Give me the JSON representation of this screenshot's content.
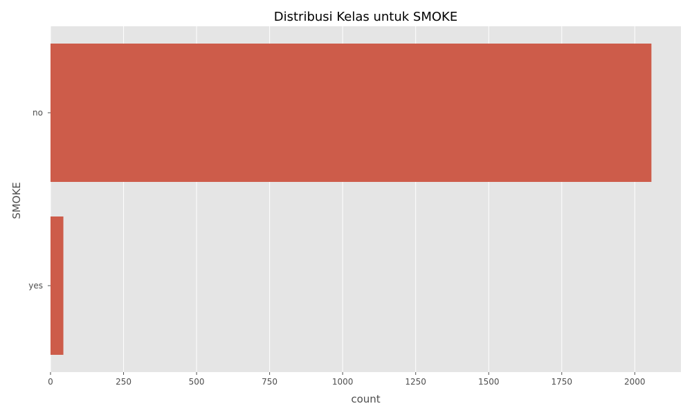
{
  "chart_data": {
    "type": "bar",
    "orientation": "horizontal",
    "title": "Distribusi Kelas untuk SMOKE",
    "xlabel": "count",
    "ylabel": "SMOKE",
    "categories": [
      "no",
      "yes"
    ],
    "values": [
      2057,
      44
    ],
    "xlim": [
      0,
      2158
    ],
    "xticks": [
      0,
      250,
      500,
      750,
      1000,
      1250,
      1500,
      1750,
      2000
    ],
    "xtick_labels": [
      "0",
      "250",
      "500",
      "750",
      "1000",
      "1250",
      "1500",
      "1750",
      "2000"
    ],
    "grid": true,
    "colors": {
      "bar": "#cd5c4a",
      "plot_background": "#e5e5e5",
      "grid": "#ffffff",
      "tick": "#4d4d4d"
    }
  }
}
